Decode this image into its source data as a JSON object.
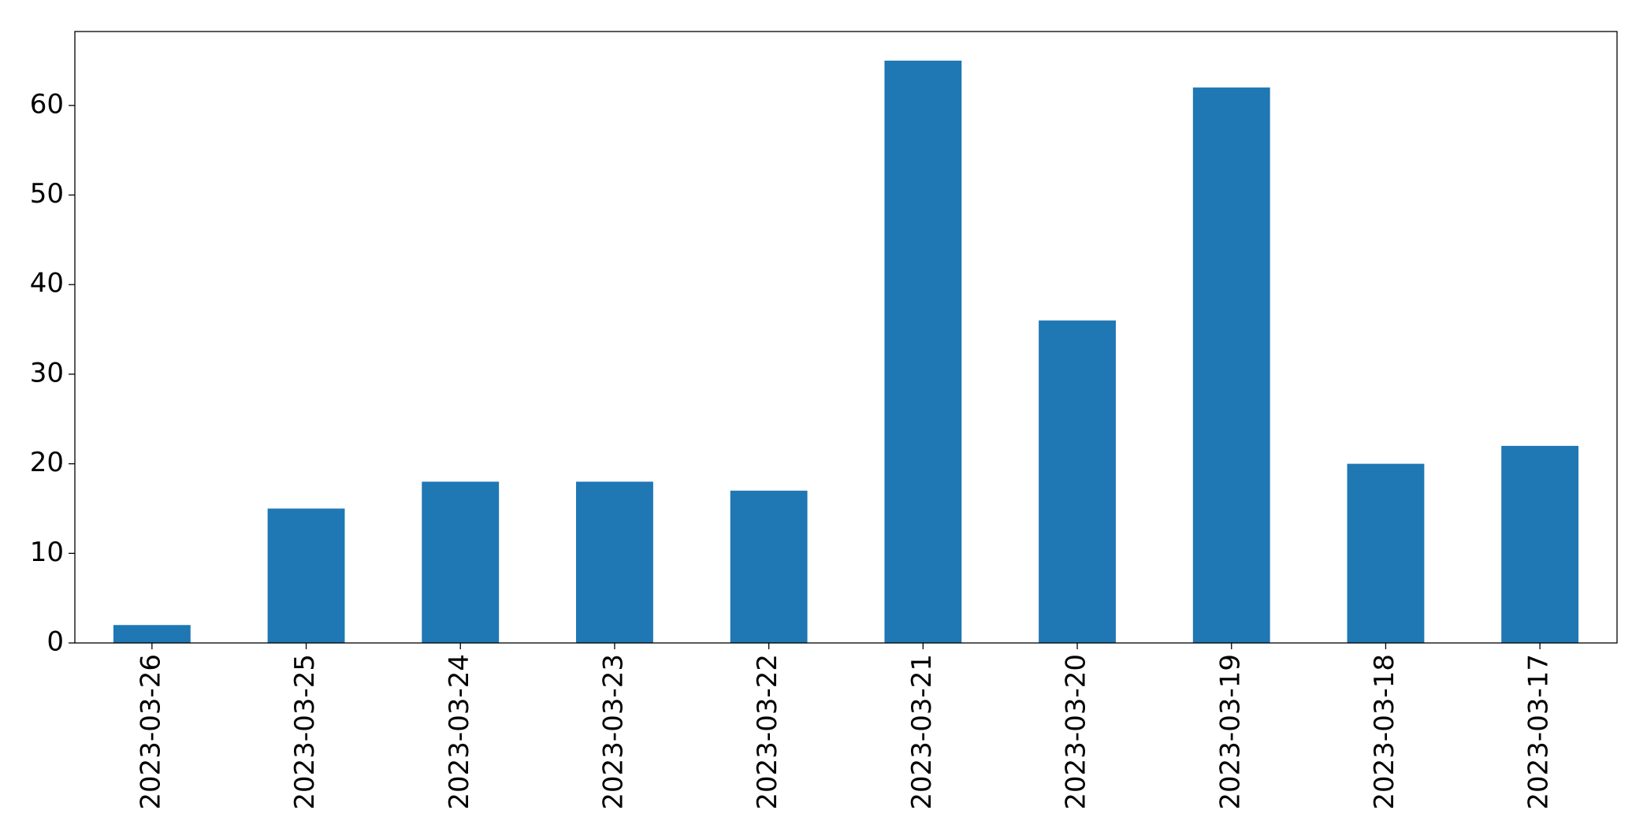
{
  "chart_data": {
    "type": "bar",
    "categories": [
      "2023-03-26",
      "2023-03-25",
      "2023-03-24",
      "2023-03-23",
      "2023-03-22",
      "2023-03-21",
      "2023-03-20",
      "2023-03-19",
      "2023-03-18",
      "2023-03-17"
    ],
    "values": [
      2,
      15,
      18,
      18,
      17,
      65,
      36,
      62,
      20,
      22
    ],
    "color": "#1f77b4",
    "ylim": [
      0,
      68.25
    ],
    "yticks": [
      0,
      10,
      20,
      30,
      40,
      50,
      60
    ],
    "grid": false
  }
}
